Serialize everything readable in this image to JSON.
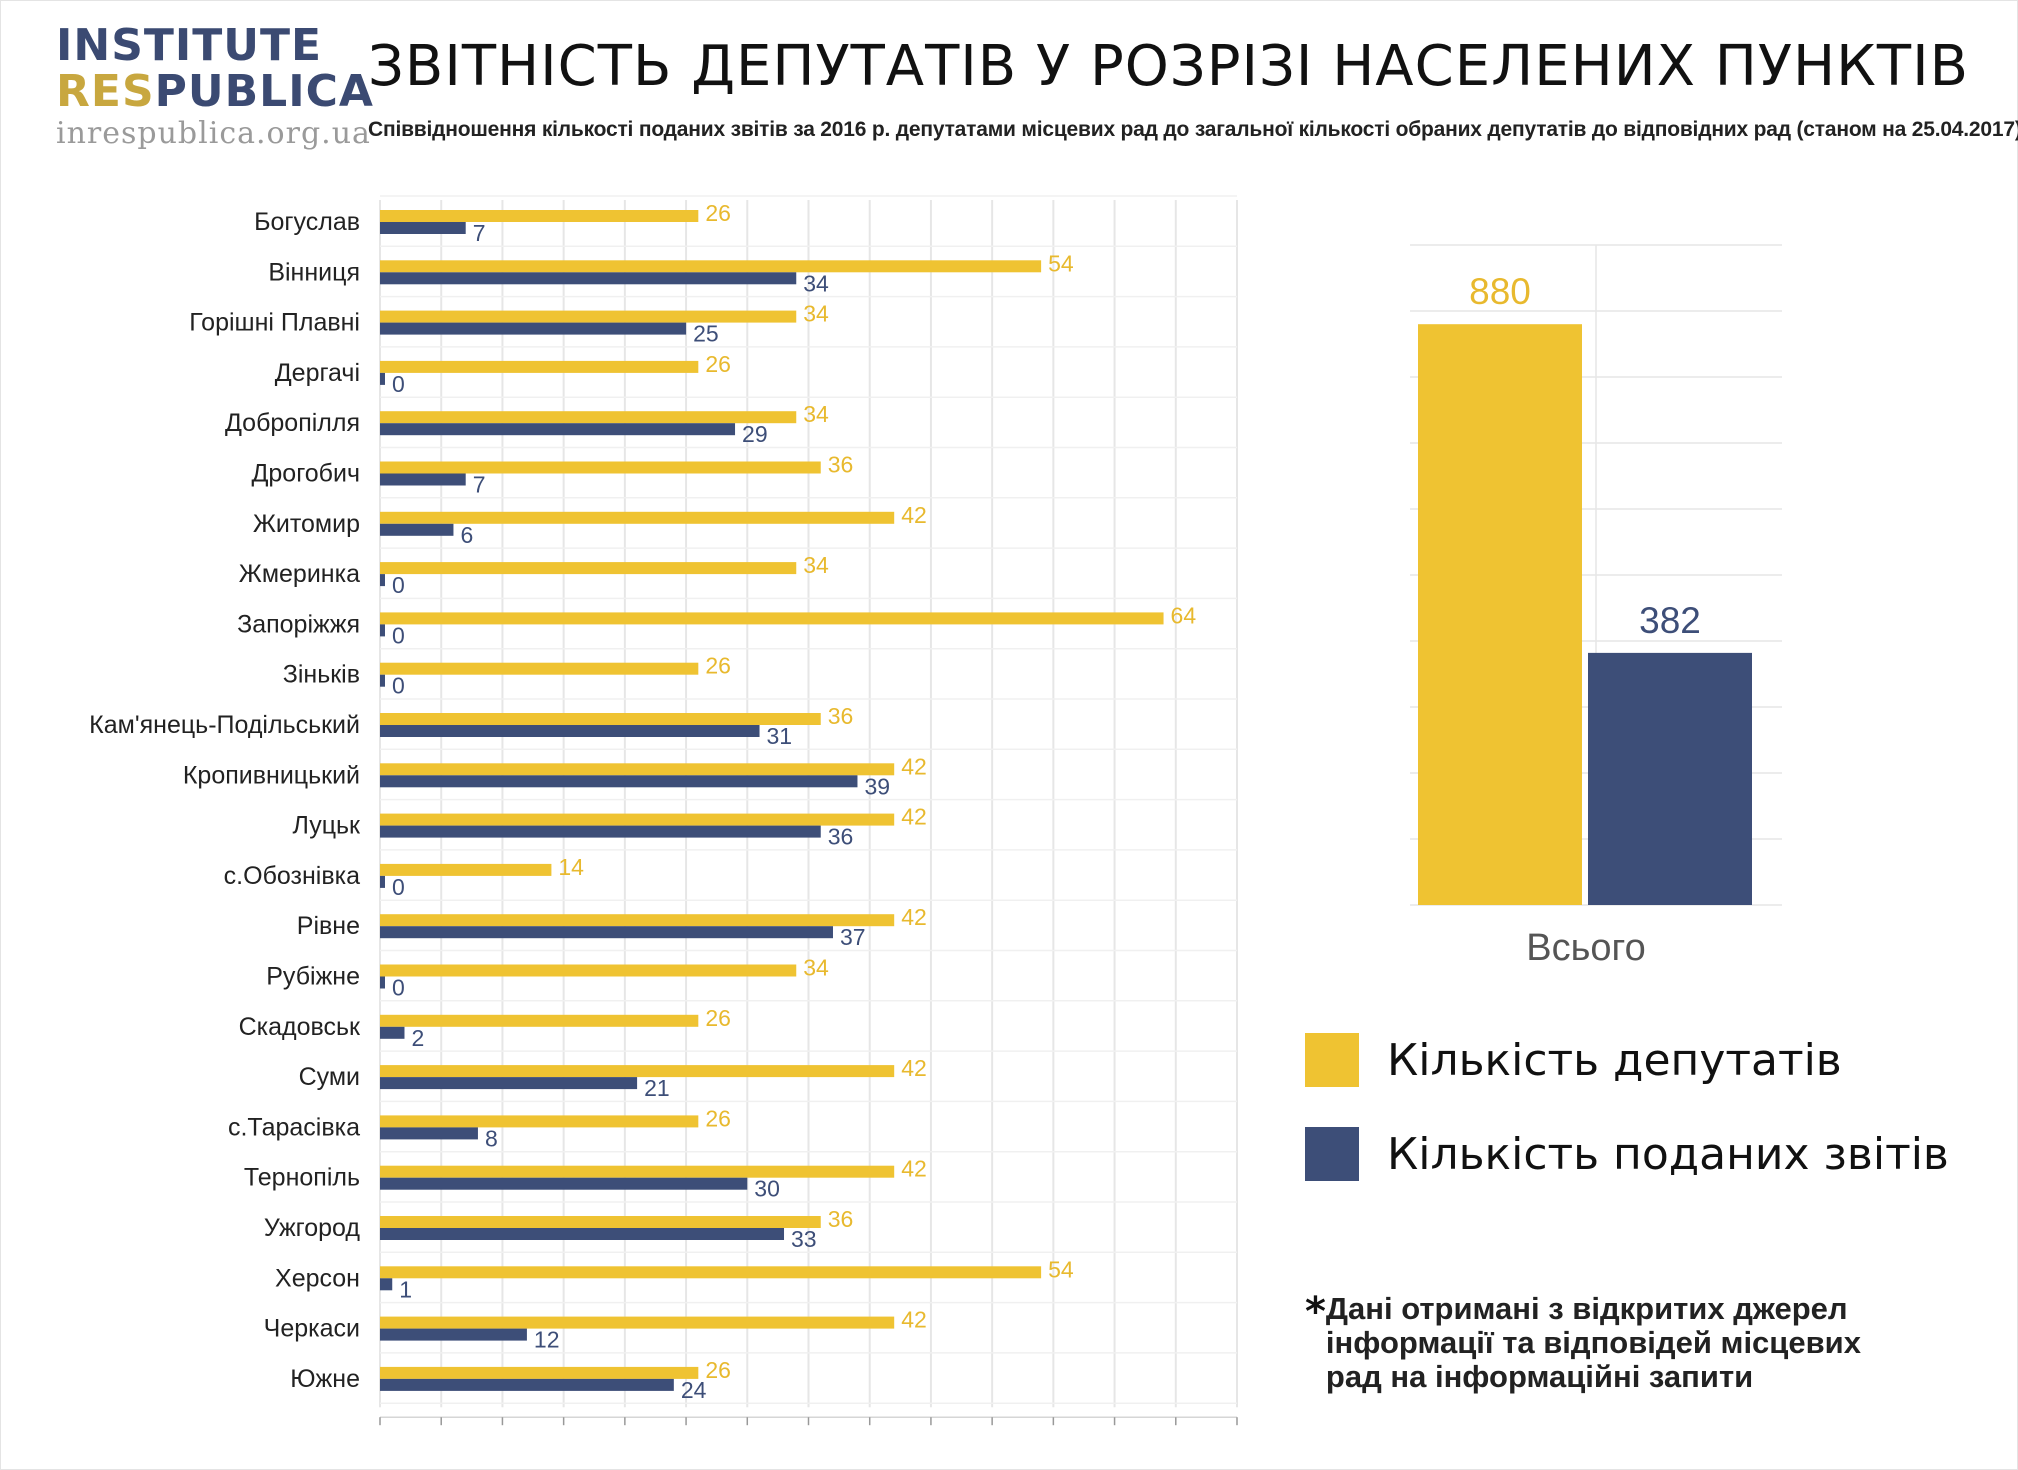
{
  "logo": {
    "line1": "INSTITUTE",
    "line2_res": "RES",
    "line2_publica": "PUBLICA",
    "url": "inrespublica.org.ua"
  },
  "title": "ЗВІТНІСТЬ ДЕПУТАТІВ  У РОЗРІЗІ НАСЕЛЕНИХ ПУНКТІВ",
  "subtitle": "Співвідношення кількості поданих звітів за 2016 р. депутатами місцевих рад до загальної кількості обраних депутатів до відповідних рад (станом на 25.04.2017)",
  "colors": {
    "deputies": "#efc332",
    "reports": "#3d4e78",
    "deputies_label": "#e8b92e",
    "reports_label": "#3d4e78",
    "grid": "#e6e6e6"
  },
  "legend": {
    "deputies": "Кількість депутатів",
    "reports": "Кількість поданих звітів"
  },
  "note": {
    "star": "*",
    "text": "Дані отримані з відкритих джерел інформації та відповідей місцевих рад на інформаційні запити"
  },
  "chart_data": [
    {
      "type": "bar",
      "orientation": "horizontal",
      "categories": [
        "Богуслав",
        "Вінниця",
        "Горішні Плавні",
        "Дергачі",
        "Добропілля",
        "Дрогобич",
        "Житомир",
        "Жмеринка",
        "Запоріжжя",
        "Зіньків",
        "Кам'янець-Подільський",
        "Кропивницький",
        "Луцьк",
        "с.Обознівка",
        "Рівне",
        "Рубіжне",
        "Скадовськ",
        "Суми",
        "с.Тарасівка",
        "Тернопіль",
        "Ужгород",
        "Херсон",
        "Черкаси",
        "Южне"
      ],
      "series": [
        {
          "name": "Кількість депутатів",
          "values": [
            26,
            54,
            34,
            26,
            34,
            36,
            42,
            34,
            64,
            26,
            36,
            42,
            42,
            14,
            42,
            34,
            26,
            42,
            26,
            42,
            36,
            54,
            42,
            26
          ]
        },
        {
          "name": "Кількість поданих звітів",
          "values": [
            7,
            34,
            25,
            0,
            29,
            7,
            6,
            0,
            0,
            0,
            31,
            39,
            36,
            0,
            37,
            0,
            2,
            21,
            8,
            30,
            33,
            1,
            12,
            24
          ]
        }
      ],
      "xlim": [
        0,
        70
      ],
      "grid": true,
      "xticks_labeled": false,
      "data_labels": true
    },
    {
      "type": "bar",
      "categories": [
        "Всього"
      ],
      "series": [
        {
          "name": "Кількість депутатів",
          "values": [
            880
          ]
        },
        {
          "name": "Кількість поданих звітів",
          "values": [
            382
          ]
        }
      ],
      "ylim": [
        0,
        1000
      ],
      "grid": true,
      "data_labels": true
    }
  ]
}
